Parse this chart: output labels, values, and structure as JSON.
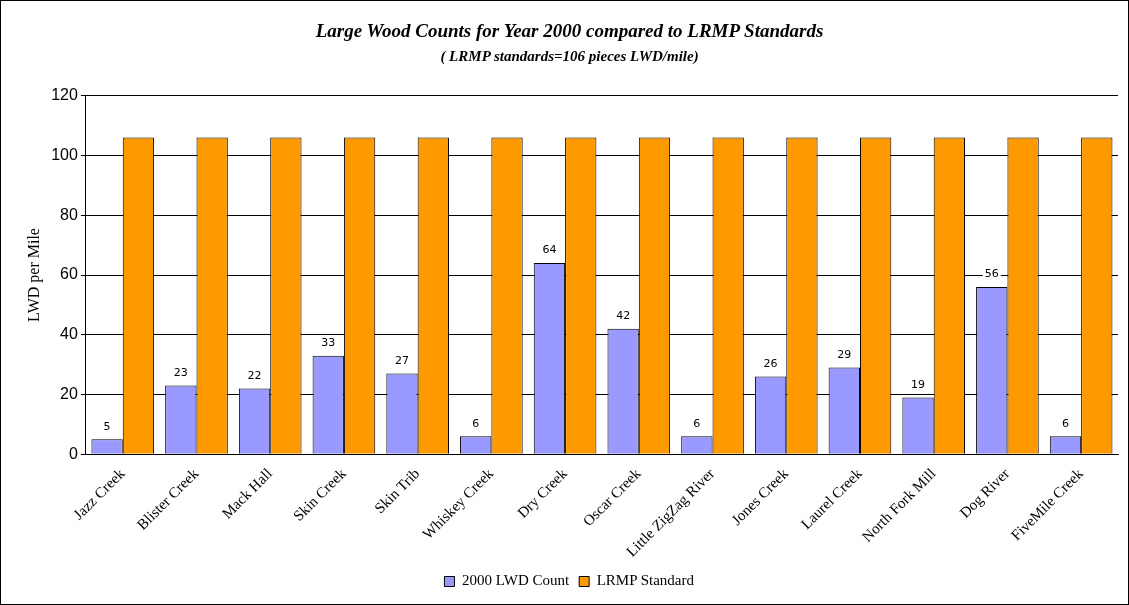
{
  "chart_data": {
    "type": "bar",
    "title": "Large Wood Counts for Year 2000 compared to LRMP Standards",
    "subtitle": "( LRMP standards=106 pieces LWD/mile)",
    "ylabel": "LWD per Mile",
    "categories": [
      "Jazz Creek",
      "Blister Creek",
      "Mack Hall",
      "Skin Creek",
      "Skin Trib",
      "Whiskey Creek",
      "Dry Creek",
      "Oscar Creek",
      "Little ZigZag River",
      "Jones Creek",
      "Laurel Creek",
      "North Fork Mill",
      "Dog River",
      "FiveMile Creek"
    ],
    "series": [
      {
        "name": "2000 LWD Count",
        "color": "#9999ff",
        "values": [
          5,
          23,
          22,
          33,
          27,
          6,
          64,
          42,
          6,
          26,
          29,
          19,
          56,
          6
        ],
        "value_labels": [
          "5",
          "23",
          "22",
          "33",
          "27",
          "6",
          "64",
          "42",
          "6",
          "26",
          "29",
          "19",
          "56",
          "6"
        ]
      },
      {
        "name": "LRMP Standard",
        "color": "#ff9900",
        "values": [
          106,
          106,
          106,
          106,
          106,
          106,
          106,
          106,
          106,
          106,
          106,
          106,
          106,
          106
        ]
      }
    ],
    "ylim": [
      0,
      120
    ],
    "yticks": [
      0,
      20,
      40,
      60,
      80,
      100,
      120
    ],
    "grid": "y",
    "legend": "bottom"
  }
}
